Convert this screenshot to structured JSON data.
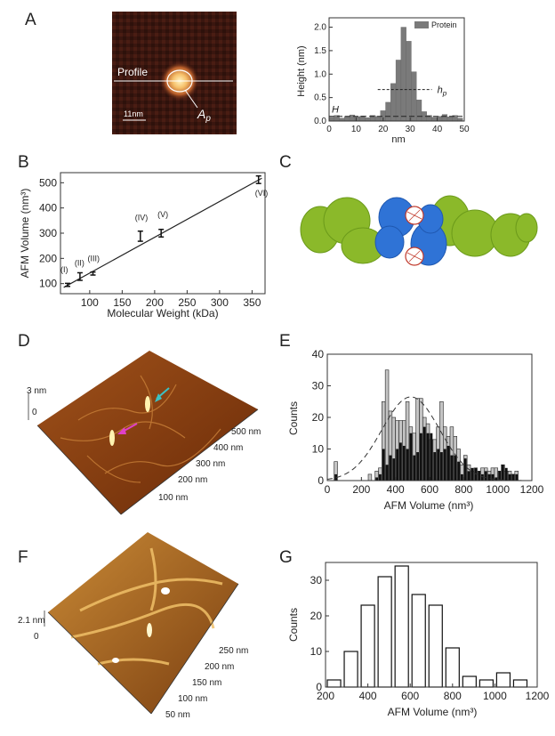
{
  "panels": {
    "A": {
      "letter": "A",
      "image": {
        "profile_label": "Profile",
        "ap_label": "A",
        "ap_sub": "p",
        "scale_label": "11nm"
      },
      "chart": {
        "legend": "Protein",
        "xlabel": "nm",
        "ylabel": "Height (nm)",
        "h_label": "H",
        "hp_label": "h",
        "hp_sub": "p",
        "xticks": [
          "0",
          "10",
          "20",
          "30",
          "40",
          "50"
        ],
        "yticks": [
          "0.0",
          "0.5",
          "1.0",
          "1.5",
          "2.0"
        ]
      }
    },
    "B": {
      "letter": "B",
      "xlabel": "Molecular Weight (kDa)",
      "ylabel": "AFM Volume (nm³)",
      "xticks": [
        "100",
        "150",
        "200",
        "250",
        "300",
        "350"
      ],
      "yticks": [
        "100",
        "200",
        "300",
        "400",
        "500"
      ],
      "point_labels": [
        "(I)",
        "(II)",
        "(III)",
        "(IV)",
        "(V)",
        "(VI)"
      ]
    },
    "C": {
      "letter": "C"
    },
    "D": {
      "letter": "D",
      "z_label": "3 nm",
      "z_zero": "0",
      "axis_labels": [
        "500 nm",
        "400 nm",
        "300 nm",
        "200 nm",
        "100 nm"
      ]
    },
    "E": {
      "letter": "E",
      "xlabel": "AFM Volume (nm³)",
      "ylabel": "Counts",
      "xticks": [
        "0",
        "200",
        "400",
        "600",
        "800",
        "1000",
        "1200"
      ],
      "yticks": [
        "0",
        "10",
        "20",
        "30",
        "40"
      ]
    },
    "F": {
      "letter": "F",
      "z_label": "2.1 nm",
      "z_zero": "0",
      "axis_labels": [
        "250 nm",
        "200 nm",
        "150 nm",
        "100 nm",
        "50 nm"
      ]
    },
    "G": {
      "letter": "G",
      "xlabel": "AFM Volume (nm³)",
      "ylabel": "Counts",
      "xticks": [
        "200",
        "400",
        "600",
        "800",
        "1000",
        "1200"
      ],
      "yticks": [
        "0",
        "10",
        "20",
        "30"
      ]
    }
  },
  "chart_data": [
    {
      "panel": "A",
      "type": "bar",
      "xlim": [
        0,
        50
      ],
      "ylim": [
        0,
        2.2
      ],
      "bin_width": 1.9,
      "x": [
        0,
        1.9,
        3.8,
        5.7,
        7.6,
        9.5,
        11.4,
        13.3,
        15.2,
        17.1,
        19,
        20.9,
        22.8,
        24.7,
        26.6,
        28.5,
        30.4,
        32.3,
        34.2,
        36.1,
        38,
        39.9,
        41.8,
        43.7,
        45.6,
        47.5
      ],
      "values": [
        0.08,
        0.12,
        0.06,
        0.1,
        0.13,
        0.09,
        0.11,
        0.07,
        0.12,
        0.1,
        0.22,
        0.4,
        0.8,
        1.3,
        2.0,
        1.7,
        1.05,
        0.45,
        0.2,
        0.12,
        0.08,
        0.1,
        0.14,
        0.09,
        0.12,
        0.06
      ],
      "reference_lines": [
        {
          "label": "hp",
          "y": 0.67
        },
        {
          "label": "H",
          "y": 0.1
        }
      ]
    },
    {
      "panel": "B",
      "type": "scatter",
      "xlim": [
        55,
        370
      ],
      "ylim": [
        60,
        540
      ],
      "points": [
        {
          "label": "(I)",
          "x": 66,
          "y": 95,
          "err": 6
        },
        {
          "label": "(II)",
          "x": 85,
          "y": 128,
          "err": 15
        },
        {
          "label": "(III)",
          "x": 105,
          "y": 140,
          "err": 6
        },
        {
          "label": "(IV)",
          "x": 178,
          "y": 288,
          "err": 20
        },
        {
          "label": "(V)",
          "x": 210,
          "y": 300,
          "err": 15
        },
        {
          "label": "(VI)",
          "x": 360,
          "y": 512,
          "err": 15
        }
      ],
      "fit_line": [
        {
          "x": 60,
          "y": 85
        },
        {
          "x": 365,
          "y": 518
        }
      ]
    },
    {
      "panel": "E",
      "type": "bar",
      "xlim": [
        0,
        1200
      ],
      "ylim": [
        0,
        40
      ],
      "bin_width": 20,
      "series": [
        {
          "name": "gray",
          "x": [
            40,
            240,
            280,
            300,
            320,
            340,
            360,
            380,
            400,
            420,
            440,
            460,
            480,
            500,
            520,
            540,
            560,
            580,
            600,
            620,
            640,
            660,
            680,
            700,
            720,
            740,
            760,
            780,
            800,
            820,
            840,
            860,
            880,
            900,
            920,
            940,
            960,
            980,
            1000,
            1020,
            1040,
            1060,
            1080,
            1100
          ],
          "values": [
            6,
            2,
            3,
            4,
            25,
            35,
            22,
            20,
            19,
            19,
            19,
            25,
            17,
            15,
            26,
            26,
            20,
            18,
            13,
            13,
            17,
            25,
            17,
            14,
            17,
            14,
            10,
            5,
            8,
            5,
            3,
            4,
            3,
            4,
            4,
            3,
            4,
            4,
            3,
            5,
            3,
            3,
            2,
            3
          ]
        },
        {
          "name": "black",
          "x": [
            40,
            240,
            280,
            300,
            320,
            340,
            360,
            380,
            400,
            420,
            440,
            460,
            480,
            500,
            520,
            540,
            560,
            580,
            600,
            620,
            640,
            660,
            680,
            700,
            720,
            740,
            760,
            780,
            800,
            820,
            840,
            860,
            880,
            900,
            920,
            940,
            960,
            980,
            1000,
            1020,
            1040,
            1060,
            1080,
            1100
          ],
          "values": [
            2,
            0,
            1,
            2,
            10,
            5,
            8,
            7,
            10,
            12,
            11,
            10,
            15,
            8,
            9,
            15,
            17,
            15,
            15,
            9,
            10,
            9,
            10,
            11,
            8,
            8,
            6,
            2,
            7,
            3,
            4,
            4,
            3,
            2,
            3,
            2,
            2,
            1,
            3,
            5,
            4,
            2,
            2,
            2
          ]
        }
      ],
      "fit_curve": "gaussian",
      "fit_params": {
        "mean": 490,
        "sd": 170,
        "peak": 26.5
      }
    },
    {
      "panel": "G",
      "type": "bar",
      "xlim": [
        200,
        1200
      ],
      "ylim": [
        0,
        35
      ],
      "bin_width": 80,
      "x": [
        240,
        320,
        400,
        480,
        560,
        640,
        720,
        800,
        880,
        960,
        1040,
        1120
      ],
      "values": [
        2,
        10,
        23,
        31,
        34,
        26,
        23,
        11,
        3,
        2,
        4,
        2
      ]
    }
  ]
}
